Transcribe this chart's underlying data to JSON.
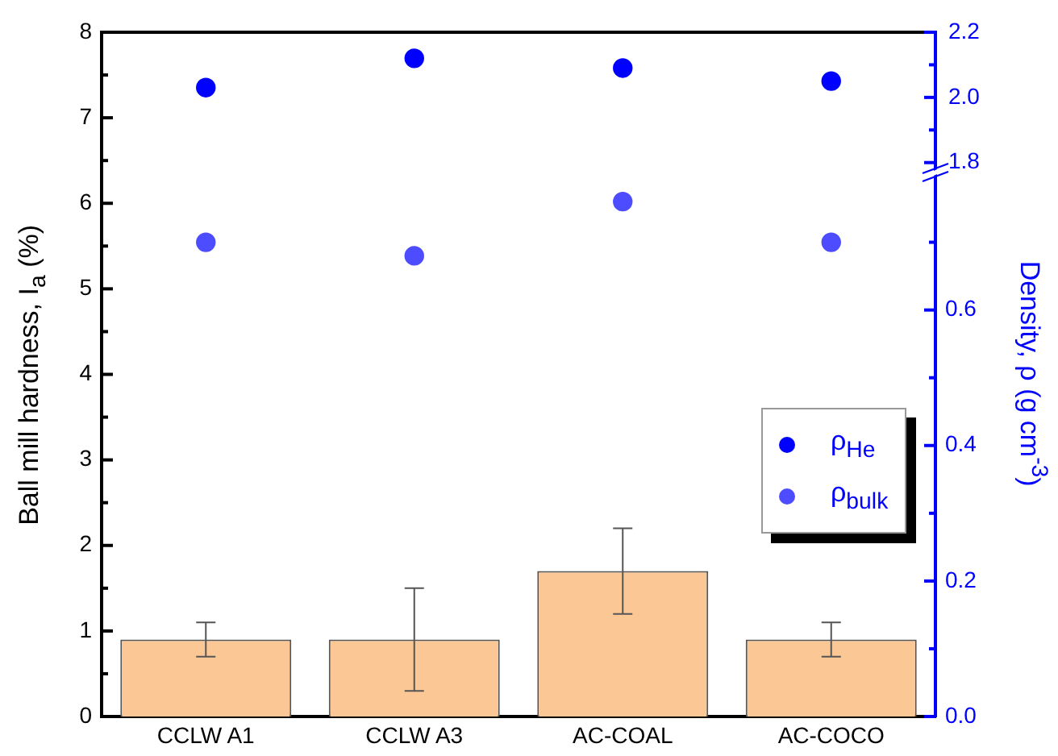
{
  "chart_data": {
    "type": "bar",
    "categories": [
      "CCLW A1",
      "CCLW A3",
      "AC-COAL",
      "AC-COCO"
    ],
    "ylabel": "Ball mill hardness, I$_{a}$ (%)",
    "y2label": "Density, ρ (g cm$^{-3}$)",
    "ylim": [
      0,
      8
    ],
    "yticks": [
      0,
      {
        "value": 0.5,
        "label": null
      },
      1,
      {
        "value": 1.5,
        "label": null
      },
      2,
      {
        "value": 2.5,
        "label": null
      },
      3,
      {
        "value": 3.5,
        "label": null
      },
      4,
      {
        "value": 4.5,
        "label": null
      },
      5,
      {
        "value": 5.5,
        "label": null
      },
      6,
      {
        "value": 6.5,
        "label": null
      },
      7,
      {
        "value": 7.5,
        "label": null
      },
      8
    ],
    "y2lim": [
      0,
      1.01
    ],
    "y2ticks": [
      {
        "value": 0,
        "label": "0.0"
      },
      {
        "value": 0.1,
        "label": null
      },
      {
        "value": 0.2,
        "label": "0.2"
      },
      {
        "value": 0.3,
        "label": null
      },
      {
        "value": 0.4,
        "label": "0.4"
      },
      {
        "value": 0.5,
        "label": null
      },
      {
        "value": 0.6,
        "label": "0.6"
      },
      {
        "value": 0.7,
        "label": null
      }
    ],
    "y3lim": [
      0.1,
      2.2
    ],
    "y3ticks": [
      {
        "value": 1.8,
        "label": "1.8"
      },
      {
        "value": 1.9,
        "label": null
      },
      {
        "value": 2.0,
        "label": "2.0"
      },
      {
        "value": 2.1,
        "label": null
      },
      {
        "value": 2.2,
        "label": "2.2"
      }
    ],
    "series": [
      {
        "color": "#fbc794",
        "values": [
          0.9,
          0.9,
          1.7,
          0.9
        ],
        "errors": [
          0.2,
          0.6,
          0.5,
          0.2
        ]
      },
      {
        "type": "scatter",
        "name": "ρ$_{He}$",
        "color": "#0000ff",
        "axis": "y3",
        "values": [
          2.03,
          2.12,
          2.09,
          2.05
        ]
      },
      {
        "type": "scatter",
        "name": "ρ$_{bulk}$",
        "color": "#4d4dff",
        "axis": "y2",
        "values": [
          0.7,
          0.68,
          0.76,
          0.7
        ]
      }
    ],
    "marker": "circle",
    "legend": "right",
    "grid": false
  }
}
